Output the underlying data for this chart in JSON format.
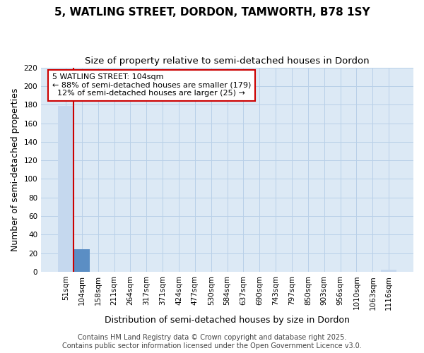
{
  "title": "5, WATLING STREET, DORDON, TAMWORTH, B78 1SY",
  "subtitle": "Size of property relative to semi-detached houses in Dordon",
  "xlabel": "Distribution of semi-detached houses by size in Dordon",
  "ylabel": "Number of semi-detached properties",
  "categories": [
    "51sqm",
    "104sqm",
    "158sqm",
    "211sqm",
    "264sqm",
    "317sqm",
    "371sqm",
    "424sqm",
    "477sqm",
    "530sqm",
    "584sqm",
    "637sqm",
    "690sqm",
    "743sqm",
    "797sqm",
    "850sqm",
    "903sqm",
    "956sqm",
    "1010sqm",
    "1063sqm",
    "1116sqm"
  ],
  "values": [
    179,
    24,
    0,
    0,
    0,
    0,
    0,
    0,
    0,
    0,
    0,
    0,
    0,
    0,
    0,
    0,
    0,
    0,
    0,
    0,
    2
  ],
  "bar_color": "#c5d8ee",
  "highlight_bar_index": 1,
  "highlight_color": "#5b8ec4",
  "vline_color": "#cc0000",
  "annotation_line1": "5 WATLING STREET: 104sqm",
  "annotation_line2": "← 88% of semi-detached houses are smaller (179)",
  "annotation_line3": "  12% of semi-detached houses are larger (25) →",
  "annotation_box_color": "#cc0000",
  "annotation_bg": "#ffffff",
  "ylim": [
    0,
    220
  ],
  "yticks": [
    0,
    20,
    40,
    60,
    80,
    100,
    120,
    140,
    160,
    180,
    200,
    220
  ],
  "background_color": "#dce9f5",
  "grid_color": "#b8d0e8",
  "figure_bg": "#ffffff",
  "title_fontsize": 11,
  "subtitle_fontsize": 9.5,
  "axis_label_fontsize": 9,
  "tick_fontsize": 7.5,
  "annotation_fontsize": 8,
  "footer_fontsize": 7,
  "footer": "Contains HM Land Registry data © Crown copyright and database right 2025.\nContains public sector information licensed under the Open Government Licence v3.0."
}
